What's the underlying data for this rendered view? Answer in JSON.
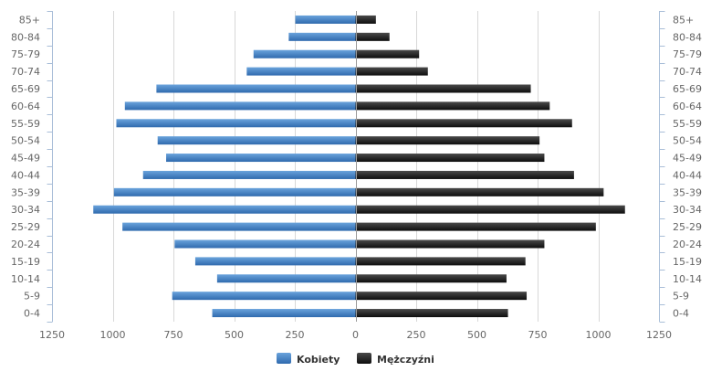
{
  "chart_data": {
    "type": "bar",
    "orientation": "horizontal-population-pyramid",
    "categories": [
      "0-4",
      "5-9",
      "10-14",
      "15-19",
      "20-24",
      "25-29",
      "30-34",
      "35-39",
      "40-44",
      "45-49",
      "50-54",
      "55-59",
      "60-64",
      "65-69",
      "70-74",
      "75-79",
      "80-84",
      "85+"
    ],
    "series": [
      {
        "name": "Kobiety",
        "side": "left",
        "color": "#3f7ec4",
        "values": [
          590,
          755,
          570,
          660,
          745,
          960,
          1080,
          995,
          875,
          780,
          815,
          985,
          950,
          820,
          448,
          420,
          275,
          248
        ]
      },
      {
        "name": "Mężczyźni",
        "side": "right",
        "color": "#1a1a1a",
        "values": [
          628,
          705,
          622,
          700,
          778,
          990,
          1110,
          1022,
          900,
          778,
          758,
          892,
          800,
          722,
          298,
          262,
          140,
          84
        ]
      }
    ],
    "xlim": [
      -1250,
      1250
    ],
    "x_ticks": [
      -1250,
      -1000,
      -750,
      -500,
      -250,
      0,
      250,
      500,
      750,
      1000,
      1250
    ],
    "x_tick_labels": [
      "1250",
      "1000",
      "750",
      "500",
      "250",
      "0",
      "250",
      "500",
      "750",
      "1000",
      "1250"
    ],
    "grid": true,
    "legend_position": "bottom-center",
    "category_labels_both_sides": true
  }
}
